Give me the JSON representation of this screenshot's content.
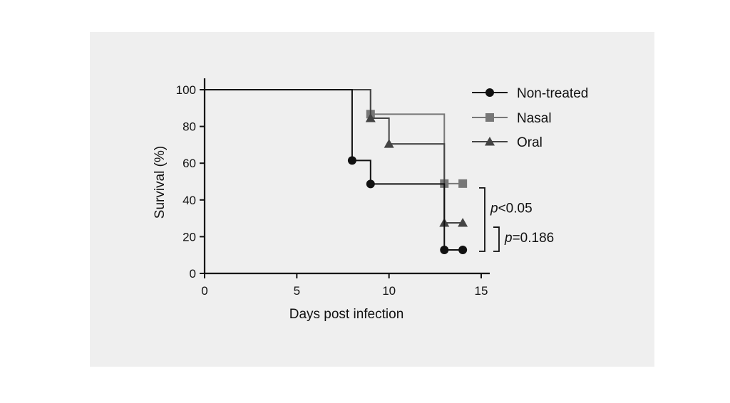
{
  "chart_data": {
    "type": "line",
    "subtype": "kaplan-meier",
    "title": "",
    "xlabel": "Days post infection",
    "ylabel": "Survival (%)",
    "xlim": [
      0,
      15
    ],
    "ylim": [
      0,
      100
    ],
    "xticks": [
      0,
      5,
      10,
      15
    ],
    "yticks": [
      0,
      20,
      40,
      60,
      80,
      100
    ],
    "grid": false,
    "legend_position": "top-right",
    "series": [
      {
        "name": "Non-treated",
        "color": "#111111",
        "marker": "circle",
        "steps": [
          [
            0,
            100
          ],
          [
            8,
            61.5
          ],
          [
            9,
            48.7
          ],
          [
            13,
            12.8
          ],
          [
            14,
            12.8
          ]
        ],
        "markers": [
          [
            8,
            61.5
          ],
          [
            9,
            48.7
          ],
          [
            13,
            12.8
          ],
          [
            14,
            12.8
          ]
        ]
      },
      {
        "name": "Nasal",
        "color": "#777777",
        "marker": "square",
        "steps": [
          [
            0,
            100
          ],
          [
            9,
            86.7
          ],
          [
            13,
            48.9
          ],
          [
            14,
            48.9
          ]
        ],
        "markers": [
          [
            9,
            86.7
          ],
          [
            13,
            48.9
          ],
          [
            14,
            48.9
          ]
        ]
      },
      {
        "name": "Oral",
        "color": "#444444",
        "marker": "triangle",
        "steps": [
          [
            0,
            100
          ],
          [
            9,
            84.5
          ],
          [
            10,
            70.5
          ],
          [
            13,
            27.5
          ],
          [
            14,
            27.5
          ]
        ],
        "markers": [
          [
            9,
            84.5
          ],
          [
            10,
            70.5
          ],
          [
            13,
            27.5
          ],
          [
            14,
            27.5
          ]
        ]
      }
    ],
    "annotations": [
      {
        "italic": "p",
        "text": "<0.05",
        "from_y": 48.9,
        "to_y": 12.8
      },
      {
        "italic": "p",
        "text": "=0.186",
        "from_y": 27.5,
        "to_y": 12.8
      }
    ]
  }
}
